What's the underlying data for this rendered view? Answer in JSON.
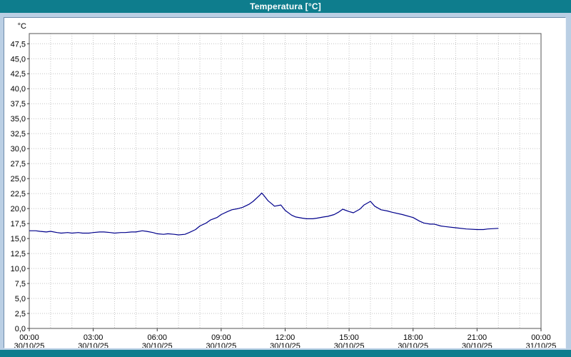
{
  "title": "Temperatura [°C]",
  "colors": {
    "titlebar": "#0e7d8d",
    "background": "#bacfe4",
    "panel": "#ffffff",
    "plot_line": "#00008b",
    "grid": "#c3c3c3"
  },
  "chart_data": {
    "type": "line",
    "title": "Temperatura [°C]",
    "xlabel": "",
    "ylabel": "°C",
    "xlim": [
      0,
      24
    ],
    "ylim": [
      0,
      49.2
    ],
    "grid": "dotted; vertical every 1 hour, horizontal every 2.5 °C",
    "legend_position": "none",
    "y_ticks": [
      0,
      2.5,
      5,
      7.5,
      10,
      12.5,
      15,
      17.5,
      20,
      22.5,
      25,
      27.5,
      30,
      32.5,
      35,
      37.5,
      40,
      42.5,
      45,
      47.5
    ],
    "y_tick_labels": [
      "0,0",
      "2,5",
      "5,0",
      "7,5",
      "10,0",
      "12,5",
      "15,0",
      "17,5",
      "20,0",
      "22,5",
      "25,0",
      "27,5",
      "30,0",
      "32,5",
      "35,0",
      "37,5",
      "40,0",
      "42,5",
      "45,0",
      "47,5"
    ],
    "x_ticks": [
      0,
      3,
      6,
      9,
      12,
      15,
      18,
      21,
      24
    ],
    "x_tick_labels": [
      {
        "time": "00:00",
        "date": "30/10/25"
      },
      {
        "time": "03:00",
        "date": "30/10/25"
      },
      {
        "time": "06:00",
        "date": "30/10/25"
      },
      {
        "time": "09:00",
        "date": "30/10/25"
      },
      {
        "time": "12:00",
        "date": "30/10/25"
      },
      {
        "time": "15:00",
        "date": "30/10/25"
      },
      {
        "time": "18:00",
        "date": "30/10/25"
      },
      {
        "time": "21:00",
        "date": "30/10/25"
      },
      {
        "time": "00:00",
        "date": "31/10/25"
      }
    ],
    "series": [
      {
        "name": "Temperatura",
        "color": "#00008b",
        "x": [
          0.0,
          0.3,
          0.5,
          0.8,
          1.0,
          1.3,
          1.5,
          1.8,
          2.0,
          2.3,
          2.5,
          2.8,
          3.0,
          3.3,
          3.5,
          3.8,
          4.0,
          4.3,
          4.5,
          4.8,
          5.0,
          5.3,
          5.5,
          5.8,
          6.0,
          6.3,
          6.5,
          6.8,
          7.0,
          7.3,
          7.5,
          7.8,
          8.0,
          8.3,
          8.5,
          8.8,
          9.0,
          9.3,
          9.5,
          9.8,
          10.0,
          10.3,
          10.5,
          10.8,
          10.9,
          11.0,
          11.2,
          11.4,
          11.5,
          11.8,
          12.0,
          12.3,
          12.5,
          12.8,
          13.0,
          13.3,
          13.5,
          13.8,
          14.0,
          14.3,
          14.5,
          14.7,
          15.0,
          15.2,
          15.5,
          15.7,
          16.0,
          16.2,
          16.5,
          16.8,
          17.0,
          17.5,
          18.0,
          18.3,
          18.5,
          18.8,
          19.0,
          19.3,
          19.5,
          20.0,
          20.5,
          21.0,
          21.3,
          21.5,
          22.0
        ],
        "y": [
          16.3,
          16.3,
          16.2,
          16.1,
          16.2,
          16.0,
          15.9,
          16.0,
          15.9,
          16.0,
          15.9,
          15.9,
          16.0,
          16.1,
          16.1,
          16.0,
          15.9,
          16.0,
          16.0,
          16.1,
          16.1,
          16.3,
          16.2,
          16.0,
          15.8,
          15.7,
          15.8,
          15.7,
          15.6,
          15.7,
          16.0,
          16.5,
          17.1,
          17.6,
          18.1,
          18.5,
          19.0,
          19.5,
          19.8,
          20.0,
          20.2,
          20.7,
          21.2,
          22.2,
          22.6,
          22.2,
          21.3,
          20.7,
          20.4,
          20.6,
          19.7,
          18.9,
          18.6,
          18.4,
          18.3,
          18.3,
          18.4,
          18.6,
          18.7,
          19.0,
          19.4,
          19.9,
          19.5,
          19.3,
          19.9,
          20.6,
          21.2,
          20.4,
          19.8,
          19.6,
          19.4,
          19.0,
          18.5,
          17.9,
          17.6,
          17.4,
          17.4,
          17.1,
          17.0,
          16.8,
          16.6,
          16.5,
          16.5,
          16.6,
          16.7
        ]
      }
    ]
  }
}
